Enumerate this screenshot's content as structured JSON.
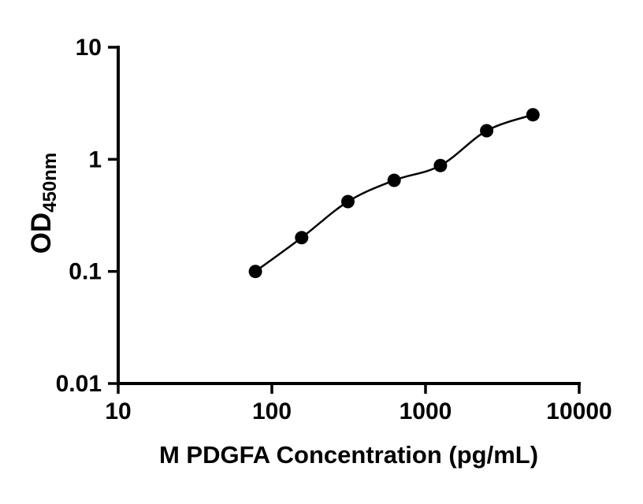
{
  "chart_data": {
    "type": "scatter",
    "title": "",
    "xlabel": "M PDGFA Concentration (pg/mL)",
    "ylabel": "OD",
    "ylabel_subscript": "450nm",
    "x_scale": "log",
    "y_scale": "log",
    "xlim": [
      10,
      10000
    ],
    "ylim": [
      0.01,
      10
    ],
    "x_ticks": [
      10,
      100,
      1000,
      10000
    ],
    "x_tick_labels": [
      "10",
      "100",
      "1000",
      "10000"
    ],
    "y_ticks": [
      0.01,
      0.1,
      1,
      10
    ],
    "y_tick_labels": [
      "0.01",
      "0.1",
      "1",
      "10"
    ],
    "grid": false,
    "legend": false,
    "series": [
      {
        "x": [
          78.125,
          156.25,
          312.5,
          625,
          1250,
          2500,
          5000
        ],
        "y": [
          0.1,
          0.2,
          0.42,
          0.65,
          0.88,
          1.8,
          2.5
        ],
        "marker": "circle",
        "curve": "smooth-fit"
      }
    ]
  },
  "colors": {
    "axis": "#000000",
    "marker": "#000000",
    "curve": "#000000",
    "background": "#ffffff"
  }
}
